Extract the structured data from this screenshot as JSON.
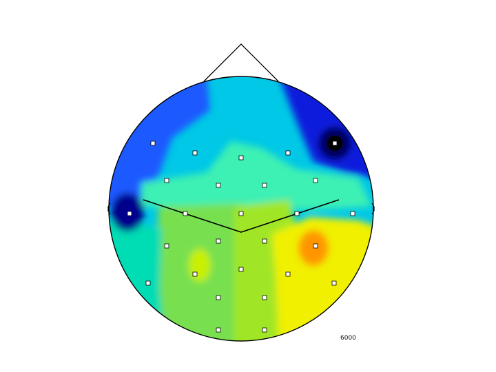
{
  "figure": {
    "type": "eeg-scalp-topographic-map",
    "label": "6000",
    "colormap": "jet",
    "colors": {
      "outline": "#000000",
      "electrode_fill": "#ffffff",
      "electrode_stroke": "#000000",
      "background": "#ffffff"
    },
    "regions": [
      {
        "name": "left-frontal",
        "color": "#1e5aff"
      },
      {
        "name": "midline-frontal",
        "color": "#00c8e6"
      },
      {
        "name": "right-frontal",
        "color": "#0a1edc"
      },
      {
        "name": "right-frontal-minimum",
        "color": "#000000"
      },
      {
        "name": "left-temporal-minimum",
        "color": "#00008c"
      },
      {
        "name": "central-band",
        "color": "#3cf0b4"
      },
      {
        "name": "left-parietal",
        "color": "#78e050"
      },
      {
        "name": "midline-parietal",
        "color": "#a0e628"
      },
      {
        "name": "right-parietal",
        "color": "#f0f000"
      },
      {
        "name": "right-parietal-maximum",
        "color": "#ff9600"
      },
      {
        "name": "left-posterior-edge",
        "color": "#00dcb4"
      },
      {
        "name": "occipital",
        "color": "#c8f000"
      }
    ],
    "electrode_count": 25
  }
}
